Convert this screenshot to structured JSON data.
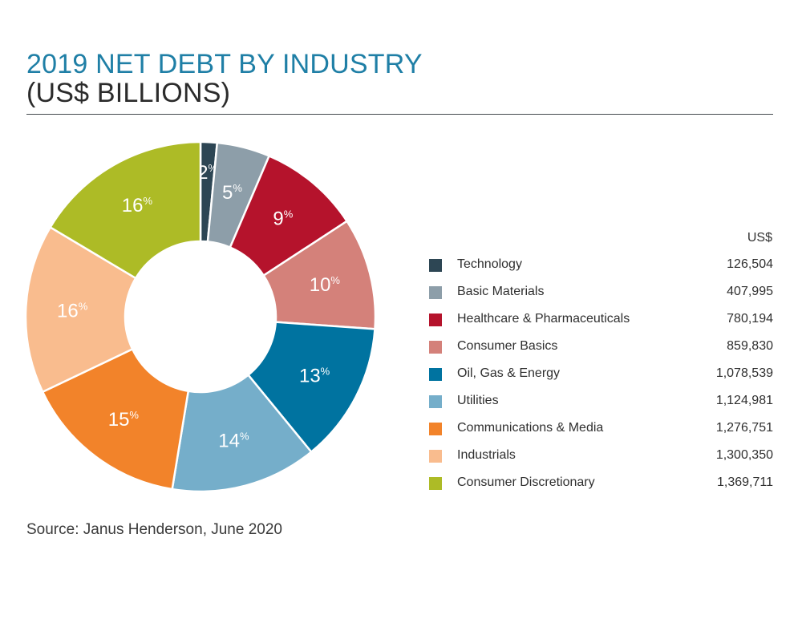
{
  "title_line1": "2019 NET DEBT BY INDUSTRY",
  "title_line2": "(US$ BILLIONS)",
  "unit_header": "US$",
  "source": "Source: Janus Henderson, June 2020",
  "chart_data": {
    "type": "pie",
    "title": "2019 NET DEBT BY INDUSTRY (US$ BILLIONS)",
    "donut": true,
    "legend_position": "right",
    "slices": [
      {
        "name": "Technology",
        "value": 126504,
        "value_label": "126,504",
        "percent": 2,
        "color": "#2d4654"
      },
      {
        "name": "Basic Materials",
        "value": 407995,
        "value_label": "407,995",
        "percent": 5,
        "color": "#8d9ea9"
      },
      {
        "name": "Healthcare & Pharmaceuticals",
        "value": 780194,
        "value_label": "780,194",
        "percent": 9,
        "color": "#b5132c"
      },
      {
        "name": "Consumer Basics",
        "value": 859830,
        "value_label": "859,830",
        "percent": 10,
        "color": "#d4817a"
      },
      {
        "name": "Oil, Gas & Energy",
        "value": 1078539,
        "value_label": "1,078,539",
        "percent": 13,
        "color": "#0073a0"
      },
      {
        "name": "Utilities",
        "value": 1124981,
        "value_label": "1,124,981",
        "percent": 14,
        "color": "#75aeca"
      },
      {
        "name": "Communications & Media",
        "value": 1276751,
        "value_label": "1,276,751",
        "percent": 15,
        "color": "#f2832a"
      },
      {
        "name": "Industrials",
        "value": 1300350,
        "value_label": "1,300,350",
        "percent": 16,
        "color": "#f9bc8e"
      },
      {
        "name": "Consumer Discretionary",
        "value": 1369711,
        "value_label": "1,369,711",
        "percent": 16,
        "color": "#adbb26"
      }
    ]
  }
}
